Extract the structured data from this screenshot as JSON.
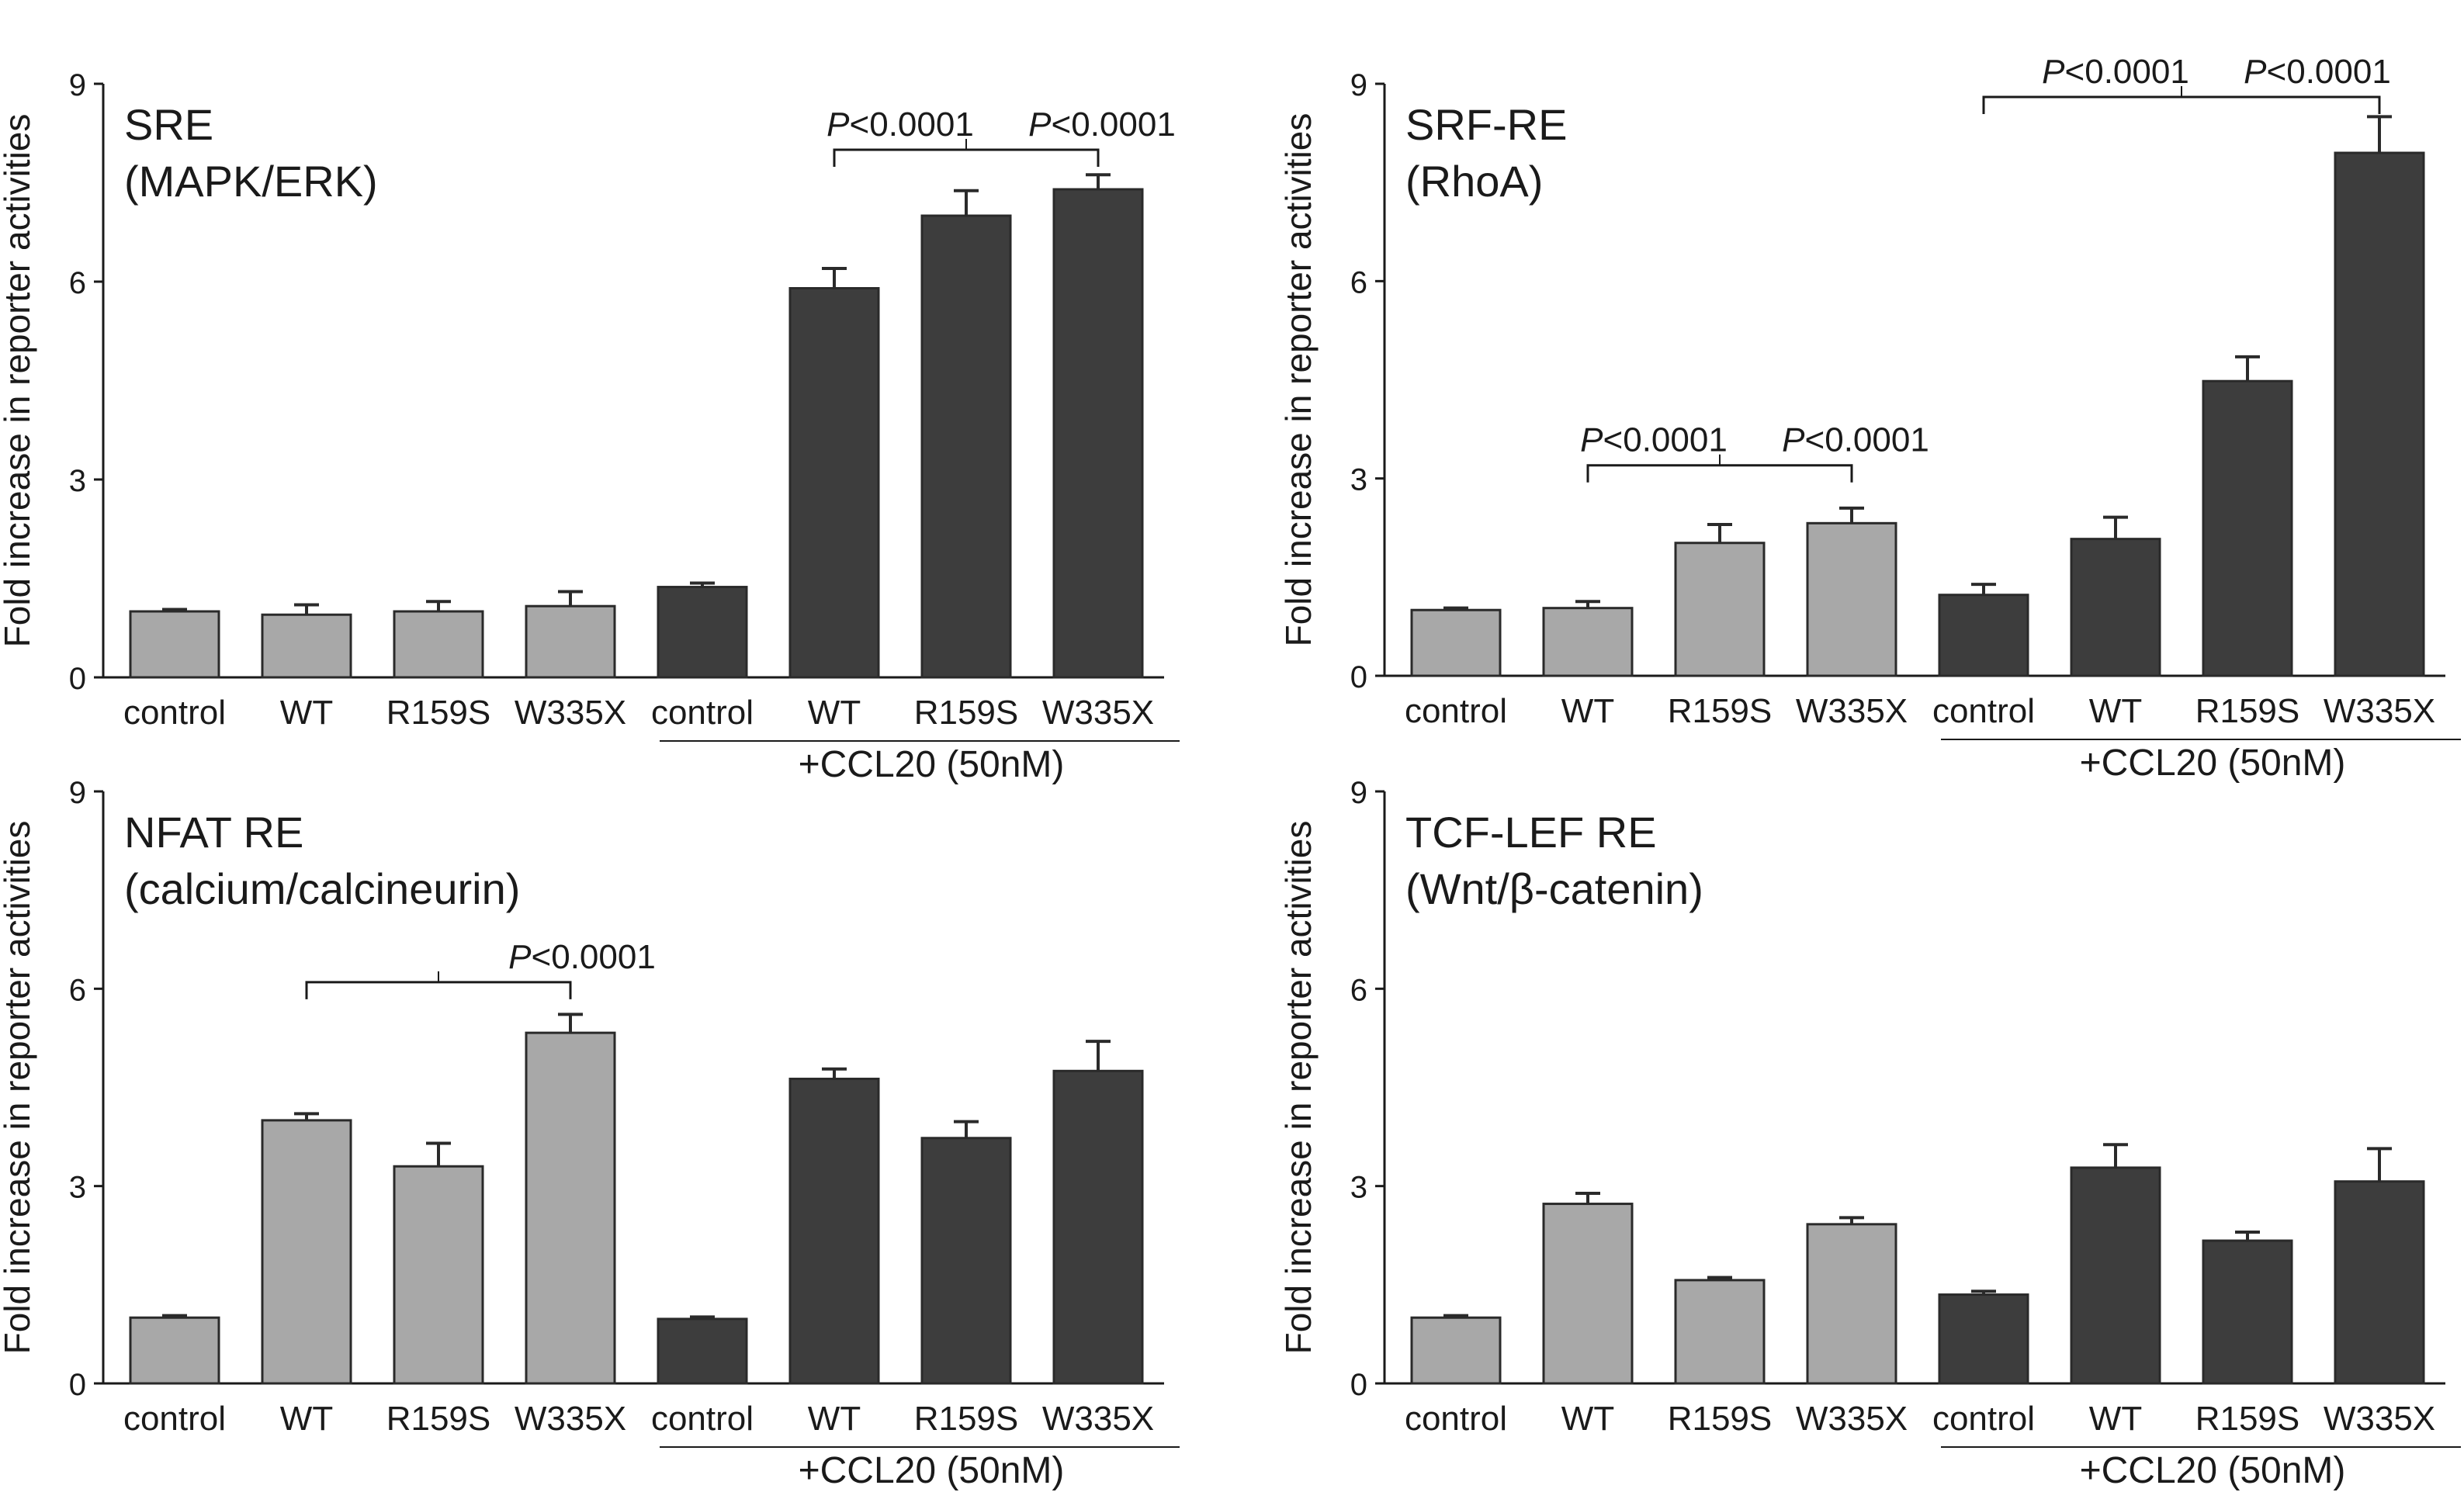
{
  "figure": {
    "colors": {
      "untreated": "#a8a8a8",
      "ccl20": "#3d3d3d",
      "axis": "#1a1a1a"
    }
  },
  "chart_data": [
    {
      "type": "bar",
      "title": "SRE",
      "subtitle": "(MAPK/ERK)",
      "ylabel": "Fold increase in reporter activities",
      "xlabel": "",
      "ylim": [
        0,
        9
      ],
      "yticks": [
        "0",
        "3",
        "6",
        "9"
      ],
      "categories": [
        "control",
        "WT",
        "R159S",
        "W335X",
        "control",
        "WT",
        "R159S",
        "W335X"
      ],
      "values": [
        1.0,
        0.95,
        1.0,
        1.08,
        1.37,
        5.9,
        7.0,
        7.4
      ],
      "errors": [
        0.03,
        0.15,
        0.15,
        0.22,
        0.06,
        0.3,
        0.38,
        0.22
      ],
      "treatment": [
        "none",
        "none",
        "none",
        "none",
        "ccl20",
        "ccl20",
        "ccl20",
        "ccl20"
      ],
      "group_label": "+CCL20 (50nM)",
      "significance": {
        "from": 5,
        "to": 7,
        "level": 8.0,
        "labels": [
          "P<0.0001",
          "P<0.0001"
        ]
      }
    },
    {
      "type": "bar",
      "title": "SRF-RE",
      "subtitle": "(RhoA)",
      "ylabel": "Fold increase in reporter activities",
      "xlabel": "",
      "ylim": [
        0,
        9
      ],
      "yticks": [
        "0",
        "3",
        "6",
        "9"
      ],
      "categories": [
        "control",
        "WT",
        "R159S",
        "W335X",
        "control",
        "WT",
        "R159S",
        "W335X"
      ],
      "values": [
        1.0,
        1.03,
        2.02,
        2.32,
        1.23,
        2.08,
        4.48,
        7.95
      ],
      "errors": [
        0.03,
        0.1,
        0.28,
        0.23,
        0.16,
        0.33,
        0.37,
        0.55
      ],
      "treatment": [
        "none",
        "none",
        "none",
        "none",
        "ccl20",
        "ccl20",
        "ccl20",
        "ccl20"
      ],
      "group_label": "+CCL20 (50nM)",
      "significance": [
        {
          "from": 1,
          "to": 3,
          "level": 3.2,
          "labels": [
            "P<0.0001",
            "P<0.0001"
          ]
        },
        {
          "from": 4,
          "to": 7,
          "level": 8.8,
          "labels": [
            "P<0.0001",
            "P<0.0001"
          ]
        }
      ]
    },
    {
      "type": "bar",
      "title": "NFAT RE",
      "subtitle": "(calcium/calcineurin)",
      "ylabel": "Fold increase in reporter activities",
      "xlabel": "",
      "ylim": [
        0,
        9
      ],
      "yticks": [
        "0",
        "3",
        "6",
        "9"
      ],
      "categories": [
        "control",
        "WT",
        "R159S",
        "W335X",
        "control",
        "WT",
        "R159S",
        "W335X"
      ],
      "values": [
        1.0,
        4.0,
        3.3,
        5.33,
        0.98,
        4.63,
        3.73,
        4.75
      ],
      "errors": [
        0.03,
        0.1,
        0.35,
        0.28,
        0.03,
        0.15,
        0.25,
        0.45
      ],
      "treatment": [
        "none",
        "none",
        "none",
        "none",
        "ccl20",
        "ccl20",
        "ccl20",
        "ccl20"
      ],
      "group_label": "+CCL20 (50nM)",
      "significance": {
        "from": 1,
        "to": 3,
        "level": 6.1,
        "labels": [
          "P<0.0001"
        ]
      }
    },
    {
      "type": "bar",
      "title": "TCF-LEF RE",
      "subtitle": "(Wnt/β-catenin)",
      "ylabel": "Fold increase in reporter activities",
      "xlabel": "",
      "ylim": [
        0,
        9
      ],
      "yticks": [
        "0",
        "3",
        "6",
        "9"
      ],
      "categories": [
        "control",
        "WT",
        "R159S",
        "W335X",
        "control",
        "WT",
        "R159S",
        "W335X"
      ],
      "values": [
        1.0,
        2.73,
        1.57,
        2.42,
        1.35,
        3.28,
        2.17,
        3.07
      ],
      "errors": [
        0.03,
        0.16,
        0.04,
        0.1,
        0.05,
        0.35,
        0.13,
        0.5
      ],
      "treatment": [
        "none",
        "none",
        "none",
        "none",
        "ccl20",
        "ccl20",
        "ccl20",
        "ccl20"
      ],
      "group_label": "+CCL20 (50nM)",
      "significance": null
    }
  ]
}
